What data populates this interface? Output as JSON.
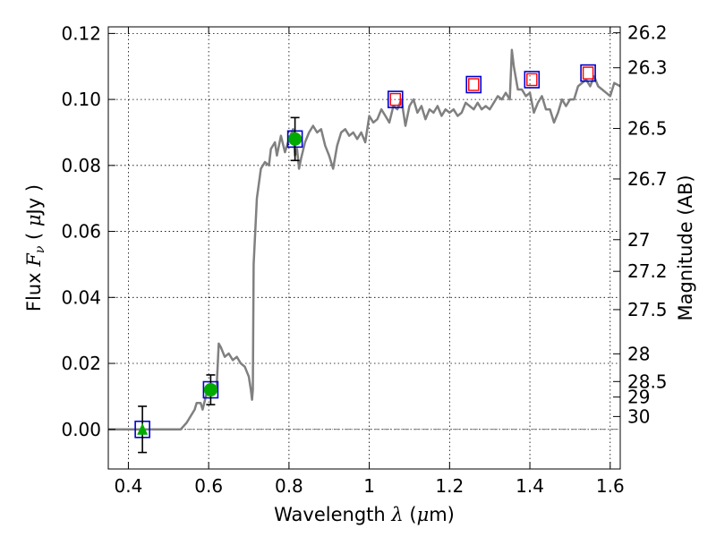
{
  "chart_data": {
    "type": "scatter",
    "xlabel": "Wavelength  λ (μm)",
    "ylabel": "Flux  Fν  ( μJy )",
    "ylabel_right": "Magnitude (AB)",
    "xlim": [
      0.35,
      1.625
    ],
    "ylim": [
      -0.012,
      0.122
    ],
    "grid": true,
    "x_ticks": [
      {
        "value": 0.4,
        "label": "0.4"
      },
      {
        "value": 0.6,
        "label": "0.6"
      },
      {
        "value": 0.8,
        "label": "0.8"
      },
      {
        "value": 1.0,
        "label": "1"
      },
      {
        "value": 1.2,
        "label": "1.2"
      },
      {
        "value": 1.4,
        "label": "1.4"
      },
      {
        "value": 1.6,
        "label": "1.6"
      }
    ],
    "y_ticks": [
      {
        "value": 0.0,
        "label": "0.00"
      },
      {
        "value": 0.02,
        "label": "0.02"
      },
      {
        "value": 0.04,
        "label": "0.04"
      },
      {
        "value": 0.06,
        "label": "0.06"
      },
      {
        "value": 0.08,
        "label": "0.08"
      },
      {
        "value": 0.1,
        "label": "0.10"
      },
      {
        "value": 0.12,
        "label": "0.12"
      }
    ],
    "mag_ticks": [
      {
        "flux": 0.1202,
        "label": "26.2"
      },
      {
        "flux": 0.1096,
        "label": "26.3"
      },
      {
        "flux": 0.0912,
        "label": "26.5"
      },
      {
        "flux": 0.0759,
        "label": "26.7"
      },
      {
        "flux": 0.0575,
        "label": "27"
      },
      {
        "flux": 0.0479,
        "label": "27.2"
      },
      {
        "flux": 0.0363,
        "label": "27.5"
      },
      {
        "flux": 0.0229,
        "label": "28"
      },
      {
        "flux": 0.0145,
        "label": "28.5"
      },
      {
        "flux": 0.0098,
        "label": "29"
      },
      {
        "flux": 0.0039,
        "label": "30"
      }
    ],
    "model_spectrum": {
      "color": "#808080",
      "points": [
        [
          0.35,
          0.0
        ],
        [
          0.53,
          0.0
        ],
        [
          0.545,
          0.002
        ],
        [
          0.555,
          0.004
        ],
        [
          0.565,
          0.006
        ],
        [
          0.57,
          0.008
        ],
        [
          0.58,
          0.008
        ],
        [
          0.585,
          0.006
        ],
        [
          0.595,
          0.011
        ],
        [
          0.605,
          0.013
        ],
        [
          0.615,
          0.012
        ],
        [
          0.62,
          0.013
        ],
        [
          0.625,
          0.026
        ],
        [
          0.63,
          0.025
        ],
        [
          0.64,
          0.022
        ],
        [
          0.65,
          0.023
        ],
        [
          0.66,
          0.021
        ],
        [
          0.67,
          0.022
        ],
        [
          0.68,
          0.02
        ],
        [
          0.69,
          0.019
        ],
        [
          0.7,
          0.016
        ],
        [
          0.705,
          0.012
        ],
        [
          0.708,
          0.009
        ],
        [
          0.71,
          0.012
        ],
        [
          0.712,
          0.05
        ],
        [
          0.72,
          0.07
        ],
        [
          0.73,
          0.079
        ],
        [
          0.74,
          0.081
        ],
        [
          0.75,
          0.08
        ],
        [
          0.755,
          0.085
        ],
        [
          0.765,
          0.087
        ],
        [
          0.77,
          0.083
        ],
        [
          0.78,
          0.089
        ],
        [
          0.79,
          0.084
        ],
        [
          0.8,
          0.088
        ],
        [
          0.81,
          0.091
        ],
        [
          0.815,
          0.083
        ],
        [
          0.82,
          0.085
        ],
        [
          0.825,
          0.079
        ],
        [
          0.83,
          0.082
        ],
        [
          0.84,
          0.087
        ],
        [
          0.85,
          0.09
        ],
        [
          0.86,
          0.092
        ],
        [
          0.87,
          0.09
        ],
        [
          0.88,
          0.091
        ],
        [
          0.89,
          0.086
        ],
        [
          0.9,
          0.083
        ],
        [
          0.91,
          0.079
        ],
        [
          0.92,
          0.086
        ],
        [
          0.93,
          0.09
        ],
        [
          0.94,
          0.091
        ],
        [
          0.95,
          0.089
        ],
        [
          0.96,
          0.09
        ],
        [
          0.97,
          0.088
        ],
        [
          0.98,
          0.09
        ],
        [
          0.99,
          0.087
        ],
        [
          1.0,
          0.095
        ],
        [
          1.01,
          0.093
        ],
        [
          1.02,
          0.094
        ],
        [
          1.03,
          0.097
        ],
        [
          1.04,
          0.095
        ],
        [
          1.05,
          0.093
        ],
        [
          1.06,
          0.098
        ],
        [
          1.07,
          0.097
        ],
        [
          1.08,
          0.1
        ],
        [
          1.09,
          0.092
        ],
        [
          1.1,
          0.098
        ],
        [
          1.11,
          0.1
        ],
        [
          1.12,
          0.096
        ],
        [
          1.13,
          0.098
        ],
        [
          1.14,
          0.094
        ],
        [
          1.15,
          0.097
        ],
        [
          1.16,
          0.096
        ],
        [
          1.17,
          0.098
        ],
        [
          1.18,
          0.095
        ],
        [
          1.19,
          0.097
        ],
        [
          1.2,
          0.096
        ],
        [
          1.21,
          0.097
        ],
        [
          1.22,
          0.095
        ],
        [
          1.23,
          0.096
        ],
        [
          1.24,
          0.099
        ],
        [
          1.25,
          0.098
        ],
        [
          1.26,
          0.097
        ],
        [
          1.27,
          0.099
        ],
        [
          1.28,
          0.097
        ],
        [
          1.29,
          0.098
        ],
        [
          1.3,
          0.097
        ],
        [
          1.31,
          0.099
        ],
        [
          1.32,
          0.101
        ],
        [
          1.33,
          0.1
        ],
        [
          1.34,
          0.102
        ],
        [
          1.35,
          0.1
        ],
        [
          1.355,
          0.115
        ],
        [
          1.36,
          0.11
        ],
        [
          1.37,
          0.103
        ],
        [
          1.38,
          0.103
        ],
        [
          1.39,
          0.101
        ],
        [
          1.4,
          0.102
        ],
        [
          1.41,
          0.096
        ],
        [
          1.42,
          0.099
        ],
        [
          1.43,
          0.101
        ],
        [
          1.44,
          0.097
        ],
        [
          1.45,
          0.097
        ],
        [
          1.46,
          0.093
        ],
        [
          1.47,
          0.096
        ],
        [
          1.48,
          0.1
        ],
        [
          1.49,
          0.098
        ],
        [
          1.5,
          0.1
        ],
        [
          1.51,
          0.1
        ],
        [
          1.52,
          0.104
        ],
        [
          1.53,
          0.105
        ],
        [
          1.54,
          0.106
        ],
        [
          1.55,
          0.104
        ],
        [
          1.56,
          0.107
        ],
        [
          1.57,
          0.104
        ],
        [
          1.58,
          0.103
        ],
        [
          1.59,
          0.102
        ],
        [
          1.6,
          0.101
        ],
        [
          1.61,
          0.105
        ],
        [
          1.625,
          0.104
        ]
      ]
    },
    "model_photometry": {
      "edge_color": "#0000cc",
      "points": [
        [
          0.435,
          0.0
        ],
        [
          0.605,
          0.012
        ],
        [
          0.815,
          0.088
        ],
        [
          1.065,
          0.1
        ],
        [
          1.26,
          0.1045
        ],
        [
          1.405,
          0.106
        ],
        [
          1.545,
          0.108
        ]
      ]
    },
    "observed_detections": {
      "color": "#00aa00",
      "points": [
        {
          "x": 0.605,
          "y": 0.012,
          "err": 0.0045
        },
        {
          "x": 0.815,
          "y": 0.088,
          "err": 0.0065
        }
      ]
    },
    "observed_upper_limit": {
      "color": "#00aa00",
      "points": [
        {
          "x": 0.435,
          "y": 0.0,
          "err": 0.007
        }
      ]
    },
    "observed_nir": {
      "color": "#ff0000",
      "points": [
        [
          1.065,
          0.1
        ],
        [
          1.26,
          0.1045
        ],
        [
          1.405,
          0.106
        ],
        [
          1.545,
          0.108
        ]
      ]
    }
  }
}
